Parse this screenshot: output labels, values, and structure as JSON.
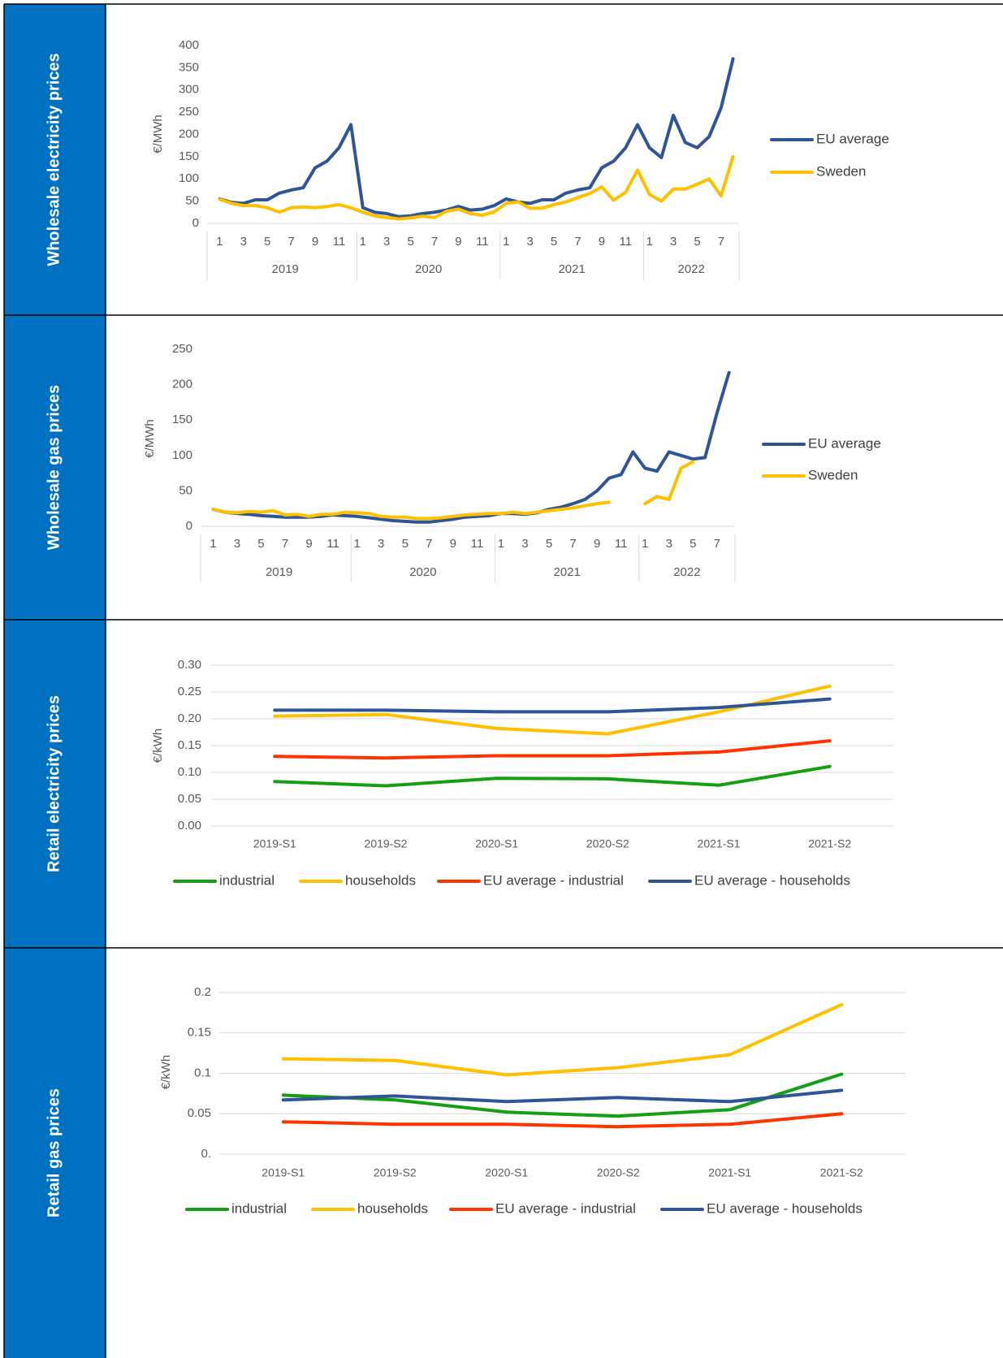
{
  "chart_data": [
    {
      "type": "line",
      "title": "Wholesale electricity prices",
      "y_label": "€/MWh",
      "categories": [
        "1",
        null,
        "3",
        null,
        "5",
        null,
        "7",
        null,
        "9",
        null,
        "11",
        null,
        "1",
        null,
        "3",
        null,
        "5",
        null,
        "7",
        null,
        "9",
        null,
        "11",
        null,
        "1",
        null,
        "3",
        null,
        "5",
        null,
        "7",
        null,
        "9",
        null,
        "11",
        null,
        "1",
        null,
        "3",
        null,
        "5",
        null,
        "7",
        null
      ],
      "category_groups": [
        "2019",
        "2020",
        "2021",
        "2022"
      ],
      "series": [
        {
          "name": "EU average",
          "color": "#2f5597",
          "values": [
            55,
            47,
            45,
            53,
            53,
            68,
            75,
            80,
            125,
            140,
            170,
            222,
            35,
            25,
            22,
            15,
            17,
            22,
            25,
            30,
            38,
            30,
            32,
            40,
            55,
            48,
            45,
            53,
            53,
            68,
            75,
            80,
            125,
            140,
            170,
            222,
            170,
            148,
            243,
            182,
            170,
            195,
            260,
            370
          ]
        },
        {
          "name": "Sweden",
          "color": "#ffc000",
          "values": [
            54,
            45,
            40,
            40,
            35,
            25,
            35,
            37,
            35,
            38,
            42,
            35,
            25,
            17,
            13,
            10,
            12,
            16,
            13,
            27,
            32,
            22,
            18,
            26,
            45,
            48,
            34,
            34,
            42,
            48,
            58,
            67,
            82,
            52,
            70,
            120,
            65,
            50,
            77,
            77,
            88,
            100,
            62,
            150
          ]
        }
      ],
      "ylim": [
        0,
        400
      ],
      "yticks": [
        0,
        50,
        100,
        150,
        200,
        250,
        300,
        350,
        400
      ],
      "grid": false,
      "legend": "right"
    },
    {
      "type": "line",
      "title": "Wholesale gas prices",
      "y_label": "€/MWh",
      "categories": [
        "1",
        null,
        "3",
        null,
        "5",
        null,
        "7",
        null,
        "9",
        null,
        "11",
        null,
        "1",
        null,
        "3",
        null,
        "5",
        null,
        "7",
        null,
        "9",
        null,
        "11",
        null,
        "1",
        null,
        "3",
        null,
        "5",
        null,
        "7",
        null,
        "9",
        null,
        "11",
        null,
        "1",
        null,
        "3",
        null,
        "5",
        null,
        "7",
        null
      ],
      "category_groups": [
        "2019",
        "2020",
        "2021",
        "2022"
      ],
      "series": [
        {
          "name": "EU average",
          "color": "#2f5597",
          "values": [
            24,
            20,
            18,
            17,
            15,
            14,
            13,
            13,
            13,
            14,
            16,
            15,
            14,
            12,
            10,
            8,
            7,
            6,
            6,
            8,
            10,
            13,
            14,
            15,
            18,
            18,
            17,
            19,
            24,
            27,
            32,
            38,
            50,
            68,
            73,
            105,
            82,
            78,
            105,
            100,
            95,
            97,
            160,
            217
          ]
        },
        {
          "name": "Sweden",
          "color": "#ffc000",
          "values": [
            24,
            20,
            19,
            21,
            20,
            22,
            16,
            17,
            14,
            17,
            17,
            20,
            19,
            18,
            14,
            13,
            13,
            11,
            11,
            12,
            14,
            16,
            17,
            18,
            18,
            20,
            18,
            20,
            22,
            24,
            26,
            29,
            32,
            34,
            null,
            null,
            32,
            42,
            38,
            82,
            91,
            null,
            null,
            null
          ]
        }
      ],
      "ylim": [
        0,
        250
      ],
      "yticks": [
        0,
        50,
        100,
        150,
        200,
        250
      ],
      "grid": false,
      "legend": "right"
    },
    {
      "type": "line",
      "title": "Retail electricity prices",
      "y_label": "€/kWh",
      "categories": [
        "2019-S1",
        "2019-S2",
        "2020-S1",
        "2020-S2",
        "2021-S1",
        "2021-S2"
      ],
      "series": [
        {
          "name": "industrial",
          "color": "#13a013",
          "values": [
            0.083,
            0.075,
            0.089,
            0.088,
            0.076,
            0.111
          ]
        },
        {
          "name": "households",
          "color": "#ffc000",
          "values": [
            0.205,
            0.208,
            0.182,
            0.172,
            0.213,
            0.261
          ]
        },
        {
          "name": "EU average - industrial",
          "color": "#ff3300",
          "values": [
            0.13,
            0.127,
            0.131,
            0.131,
            0.138,
            0.159
          ]
        },
        {
          "name": "EU average - households",
          "color": "#2f5597",
          "values": [
            0.216,
            0.216,
            0.213,
            0.213,
            0.221,
            0.237
          ]
        }
      ],
      "ylim": [
        0,
        0.3
      ],
      "yticks": [
        {
          "value": 0,
          "label": "0.00"
        },
        0.05,
        {
          "value": 0.1,
          "label": "0.10"
        },
        0.15,
        {
          "value": 0.2,
          "label": "0.20"
        },
        0.25,
        {
          "value": 0.3,
          "label": "0.30"
        }
      ],
      "grid": true,
      "legend": "bottom"
    },
    {
      "type": "line",
      "title": "Retail gas prices",
      "y_label": "€/kWh",
      "categories": [
        "2019-S1",
        "2019-S2",
        "2020-S1",
        "2020-S2",
        "2021-S1",
        "2021-S2"
      ],
      "series": [
        {
          "name": "industrial",
          "color": "#13a013",
          "values": [
            0.073,
            0.067,
            0.052,
            0.047,
            0.055,
            0.099
          ]
        },
        {
          "name": "households",
          "color": "#ffc000",
          "values": [
            0.118,
            0.116,
            0.098,
            0.107,
            0.123,
            0.185
          ]
        },
        {
          "name": "EU average - industrial",
          "color": "#ff3300",
          "values": [
            0.04,
            0.037,
            0.037,
            0.034,
            0.037,
            0.05
          ]
        },
        {
          "name": "EU average - households",
          "color": "#2f5597",
          "values": [
            0.067,
            0.072,
            0.065,
            0.07,
            0.065,
            0.079
          ]
        }
      ],
      "ylim": [
        0,
        0.2
      ],
      "yticks": [
        {
          "value": 0,
          "label": "0."
        },
        0.05,
        0.1,
        0.15,
        0.2
      ],
      "grid": true,
      "legend": "bottom"
    }
  ]
}
